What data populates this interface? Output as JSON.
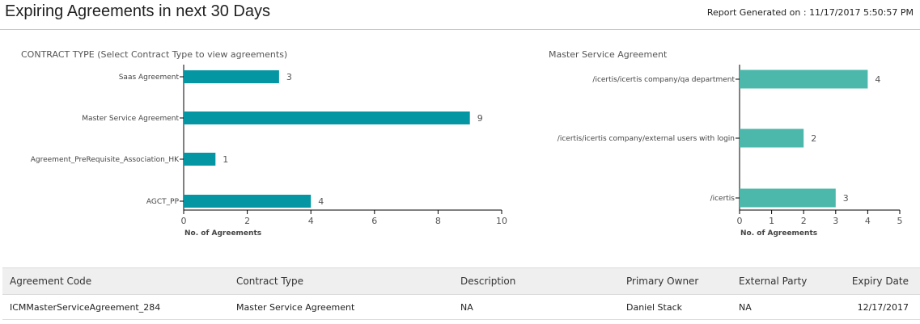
{
  "header": {
    "title": "Expiring Agreements in next 30 Days",
    "report_label": "Report Generated on :",
    "report_timestamp": "11/17/2017 5:50:57 PM"
  },
  "colors": {
    "left_bar": "#0596a4",
    "right_bar": "#4cb8ab",
    "link": "#1b5f9e"
  },
  "chart_data": [
    {
      "type": "bar",
      "orientation": "horizontal",
      "title": "CONTRACT TYPE (Select Contract Type to view agreements)",
      "categories": [
        "Saas Agreement",
        "Master Service Agreement",
        "Agreement_PreRequisite_Association_HK",
        "AGCT_PP"
      ],
      "values": [
        3,
        9,
        1,
        4
      ],
      "xlabel": "No. of Agreements",
      "xlim": [
        0,
        10
      ],
      "xticks": [
        0,
        2,
        4,
        6,
        8,
        10
      ],
      "grid": false
    },
    {
      "type": "bar",
      "orientation": "horizontal",
      "title": "Master Service Agreement",
      "categories": [
        "/icertis/icertis company/qa department",
        "/icertis/icertis company/external users with login",
        "/icertis"
      ],
      "values": [
        4,
        2,
        3
      ],
      "xlabel": "No. of Agreements",
      "xlim": [
        0,
        5
      ],
      "xticks": [
        0,
        1,
        2,
        3,
        4,
        5
      ],
      "grid": false
    }
  ],
  "table": {
    "columns": [
      "Agreement Code",
      "Contract  Type",
      "Description",
      "Primary Owner",
      "External Party",
      "Expiry Date"
    ],
    "rows": [
      {
        "agreement_code": "ICMMasterServiceAgreement_284",
        "contract_type": "Master Service Agreement",
        "description": "NA",
        "primary_owner": "Daniel Stack",
        "external_party": "NA",
        "expiry_date": "12/17/2017"
      }
    ]
  }
}
